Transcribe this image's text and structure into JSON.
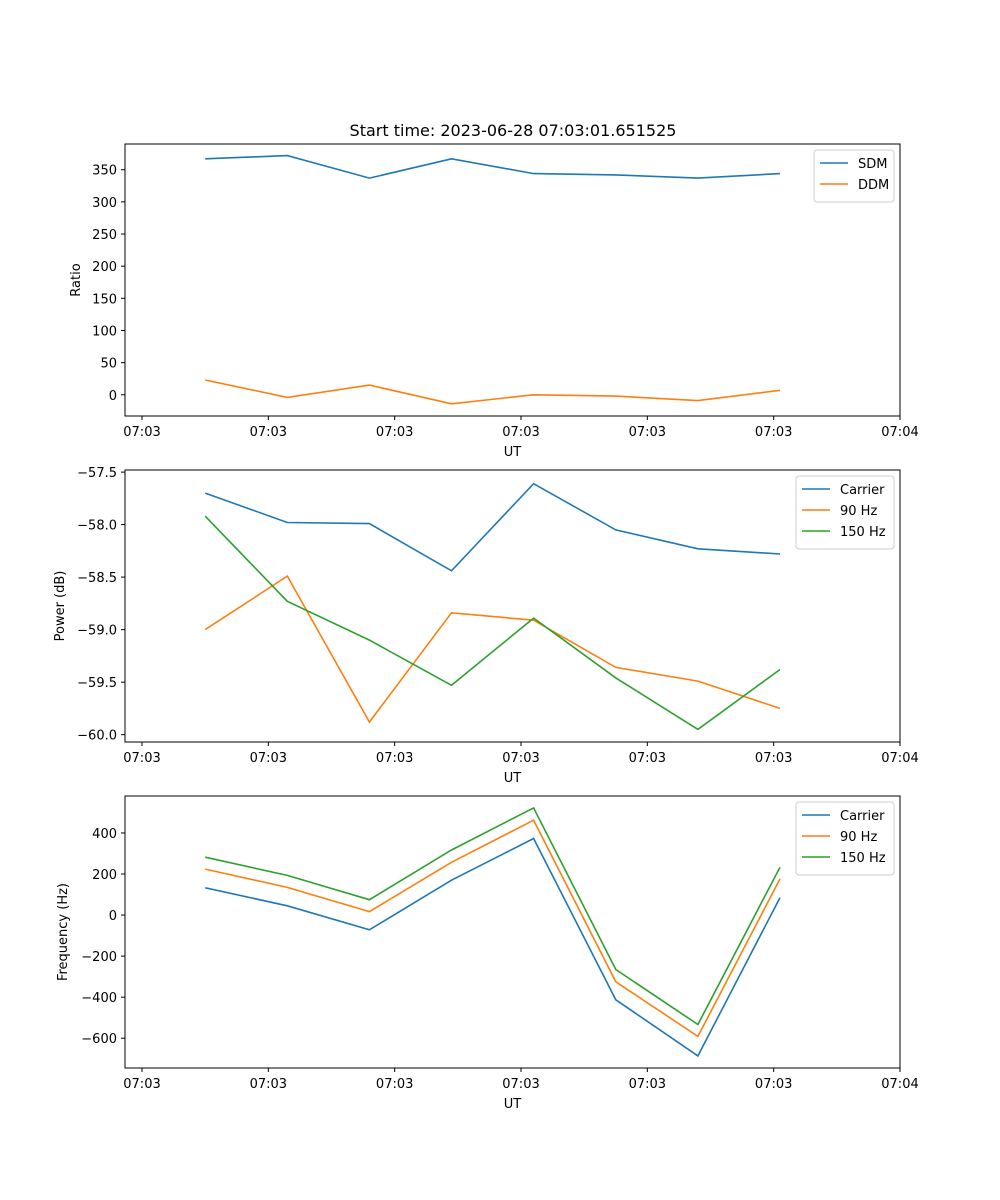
{
  "figure": {
    "title": "Start time: 2023-06-28 07:03:01.651525"
  },
  "chart_data": [
    {
      "type": "line",
      "xlabel": "UT",
      "ylabel": "Ratio",
      "x_tick_labels": [
        "07:03",
        "07:03",
        "07:03",
        "07:03",
        "07:03",
        "07:03",
        "07:04"
      ],
      "xlim": [
        0,
        6
      ],
      "x": [
        0.5,
        1.15,
        1.8,
        2.45,
        3.1,
        3.75,
        4.4,
        5.05
      ],
      "ylim": [
        -33,
        390
      ],
      "yticks": [
        0,
        50,
        100,
        150,
        200,
        250,
        300,
        350
      ],
      "legend": "top-right",
      "series": [
        {
          "name": "SDM",
          "color": "#1f77b4",
          "values": [
            367,
            372,
            337,
            367,
            344,
            342,
            337,
            344
          ]
        },
        {
          "name": "DDM",
          "color": "#ff7f0e",
          "values": [
            23,
            -4,
            15,
            -14,
            0,
            -2,
            -9,
            7
          ]
        }
      ]
    },
    {
      "type": "line",
      "xlabel": "UT",
      "ylabel": "Power (dB)",
      "x_tick_labels": [
        "07:03",
        "07:03",
        "07:03",
        "07:03",
        "07:03",
        "07:03",
        "07:04"
      ],
      "xlim": [
        0,
        6
      ],
      "x": [
        0.5,
        1.15,
        1.8,
        2.45,
        3.1,
        3.75,
        4.4,
        5.05
      ],
      "ylim": [
        -60.07,
        -57.48
      ],
      "yticks": [
        -60.0,
        -59.5,
        -59.0,
        -58.5,
        -58.0,
        -57.5
      ],
      "ytick_labels": [
        "−60.0",
        "−59.5",
        "−59.0",
        "−58.5",
        "−58.0",
        "−57.5"
      ],
      "legend": "top-right",
      "series": [
        {
          "name": "Carrier",
          "color": "#1f77b4",
          "values": [
            -57.7,
            -57.98,
            -57.99,
            -58.44,
            -57.61,
            -58.05,
            -58.23,
            -58.28
          ]
        },
        {
          "name": "90 Hz",
          "color": "#ff7f0e",
          "values": [
            -59.0,
            -58.49,
            -59.88,
            -58.84,
            -58.91,
            -59.36,
            -59.49,
            -59.75
          ]
        },
        {
          "name": "150 Hz",
          "color": "#2ca02c",
          "values": [
            -57.92,
            -58.73,
            -59.1,
            -59.53,
            -58.89,
            -59.46,
            -59.95,
            -59.38
          ]
        }
      ]
    },
    {
      "type": "line",
      "xlabel": "UT",
      "ylabel": "Frequency (Hz)",
      "x_tick_labels": [
        "07:03",
        "07:03",
        "07:03",
        "07:03",
        "07:03",
        "07:03",
        "07:04"
      ],
      "xlim": [
        0,
        6
      ],
      "x": [
        0.5,
        1.15,
        1.8,
        2.45,
        3.1,
        3.75,
        4.4,
        5.05
      ],
      "ylim": [
        -745,
        580
      ],
      "yticks": [
        -600,
        -400,
        -200,
        0,
        200,
        400
      ],
      "ytick_labels": [
        "−600",
        "−400",
        "−200",
        "0",
        "200",
        "400"
      ],
      "legend": "top-right",
      "series": [
        {
          "name": "Carrier",
          "color": "#1f77b4",
          "values": [
            133,
            45,
            -72,
            170,
            373,
            -413,
            -686,
            85
          ]
        },
        {
          "name": "90 Hz",
          "color": "#ff7f0e",
          "values": [
            224,
            135,
            17,
            257,
            462,
            -325,
            -591,
            176
          ]
        },
        {
          "name": "150 Hz",
          "color": "#2ca02c",
          "values": [
            282,
            193,
            75,
            317,
            522,
            -265,
            -533,
            233
          ]
        }
      ]
    }
  ]
}
